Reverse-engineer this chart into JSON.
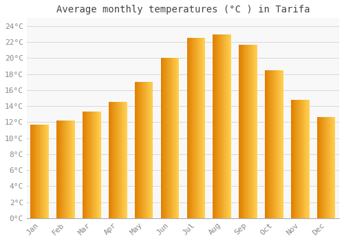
{
  "title": "Average monthly temperatures (°C ) in Tarifa",
  "months": [
    "Jan",
    "Feb",
    "Mar",
    "Apr",
    "May",
    "Jun",
    "Jul",
    "Aug",
    "Sep",
    "Oct",
    "Nov",
    "Dec"
  ],
  "values": [
    11.7,
    12.2,
    13.3,
    14.5,
    17.0,
    20.0,
    22.5,
    23.0,
    21.7,
    18.5,
    14.8,
    12.6
  ],
  "bar_color_face": "#FFA500",
  "bar_color_light": "#FFD050",
  "bar_color_dark": "#E08000",
  "ylim": [
    0,
    25
  ],
  "yticks": [
    0,
    2,
    4,
    6,
    8,
    10,
    12,
    14,
    16,
    18,
    20,
    22,
    24
  ],
  "ytick_labels": [
    "0°C",
    "2°C",
    "4°C",
    "6°C",
    "8°C",
    "10°C",
    "12°C",
    "14°C",
    "16°C",
    "18°C",
    "20°C",
    "22°C",
    "24°C"
  ],
  "grid_color": "#d8d8d8",
  "bg_color": "#ffffff",
  "plot_bg_color": "#f8f8f8",
  "title_fontsize": 10,
  "tick_fontsize": 8,
  "font_family": "monospace",
  "tick_color": "#888888",
  "title_color": "#444444"
}
